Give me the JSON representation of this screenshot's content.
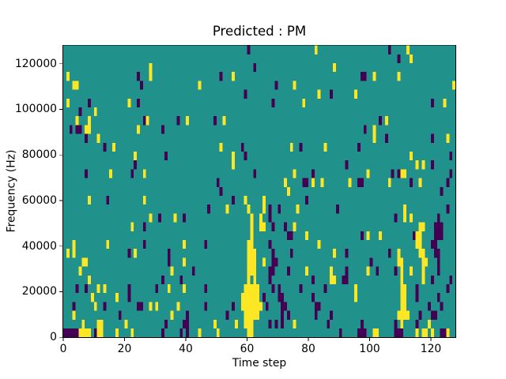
{
  "figure": {
    "title": "Predicted : PM",
    "xlabel": "Time step",
    "ylabel": "Frequency (Hz)",
    "background": "#ffffff"
  },
  "chart_data": {
    "type": "heatmap",
    "title": "Predicted : PM",
    "xlabel": "Time step",
    "ylabel": "Frequency (Hz)",
    "x_ticks": [
      0,
      20,
      40,
      60,
      80,
      100,
      120
    ],
    "x_tick_labels": [
      "0",
      "20",
      "40",
      "60",
      "80",
      "100",
      "120"
    ],
    "y_ticks": [
      0,
      20000,
      40000,
      60000,
      80000,
      100000,
      120000
    ],
    "y_tick_labels": [
      "0",
      "20000",
      "40000",
      "60000",
      "80000",
      "100000",
      "120000"
    ],
    "xlim": [
      0,
      128
    ],
    "ylim": [
      0,
      128000
    ],
    "n_cols": 128,
    "n_rows": 33,
    "grid_on": false,
    "legend": "none",
    "colormap": "viridis-3-level",
    "value_colors": {
      ".": "#21918c",
      "p": "#440154",
      "y": "#fde725"
    },
    "value_meaning": {
      ".": "mid (1)",
      "p": "low (0)",
      "y": "high (2)"
    },
    "grid_rows_top_to_bottom": [
      "............................................................p.....................y.......................p.....y...............",
      ".............................................................................................................p...y..............",
      "............................y.................................p.........................y.......................................",
      ".y......................p...y......................p...y.........................................pp..y.......y..................",
      "...yy....................p..................y........................p.....y...................................................y",
      "...........................................................p.......................y...p.......y................................",
      ".y......p............y..p...........................................p.........y.........................................p...y...",
      ".....p....y.....................................................................................................................",
      "....y...y.................py.........p..y........p..y..................................................p.y......................",
      "..p.pp.yy...............y.......p.................................................................p..y..........................",
      ".......p...y.........................................................................................y...p..............p....y..",
      ".............p..y..................................y......p...............y..p.......y..........p...............................",
      ".......................y.........p.....................y...p.....................................................y............p.",
      ".......................p...............................y....................................p......................y.y..p.......",
      ".......p.......y......p...y...................................p............y.....p.................y.......p.pyy..............p.",
      "..................................................p.....................y.....pp.y..y........y..pp........y......p..y........p..",
      "...................................................p.....................y.................................................p....",
      "........y.....p...........y............................p...y.....y.............p................................................",
      "...............................................p.....y......y....y.p..p.....y............p.....................y.............p..",
      "............................y..p....y..p.....................y..y..p........................................p..y.y........p.....",
      "......................y...p..................................y..yy..p...p..y........................................yy...ppp....",
      ".............................................................y...........pp....y.................p.y...y..........pyy....ppp....",
      "...y..........y...........p............y......p.............yy.....p...............y...............................yy...pp......",
      ".y.y.................p.y..........p.........................yyy.....p.....p.............y...p.............p..y......yy...pp.....",
      "......yy..........................p....y....................yyy..y..pp..............................p........yy......yy...p.....",
      ".....y.............................y......p.................yyy....pp....p.....y.......y....p......y..p.....p.y..y...y....p.....",
      "........y.......................p.....p.....................y.y....p.............p.....yy..pp.................y......y..p.....p.",
      "....p..p...y.y.......p........p...y....y......p............yyyyy....p.p......p.......p.........y..............yy...p.........p..",
      ".........y.......y...p....................................yyyyyy.p....pp.........p.............y..............yy...p......p.....",
      "...p......y..p..........pp..y.y......y........p........p..yyyyyyy.p....pp.........pp..........................yy.......p...p....",
      "...y..............p................y....p............p.....yyyyy.......p.p........p....p.....................yyyy...p...pp......",
      "......y....yy.......y............p.....pp........y......y..yyy.....p.p.p...y..........p..........p..........p.y....p...y........",
      "pppppyyyy.pyy....y....y.........p.....p.p...y.....y.........yy............................p.....ppp..yy.....ppp....y.yy.y..ppy.."
    ]
  }
}
